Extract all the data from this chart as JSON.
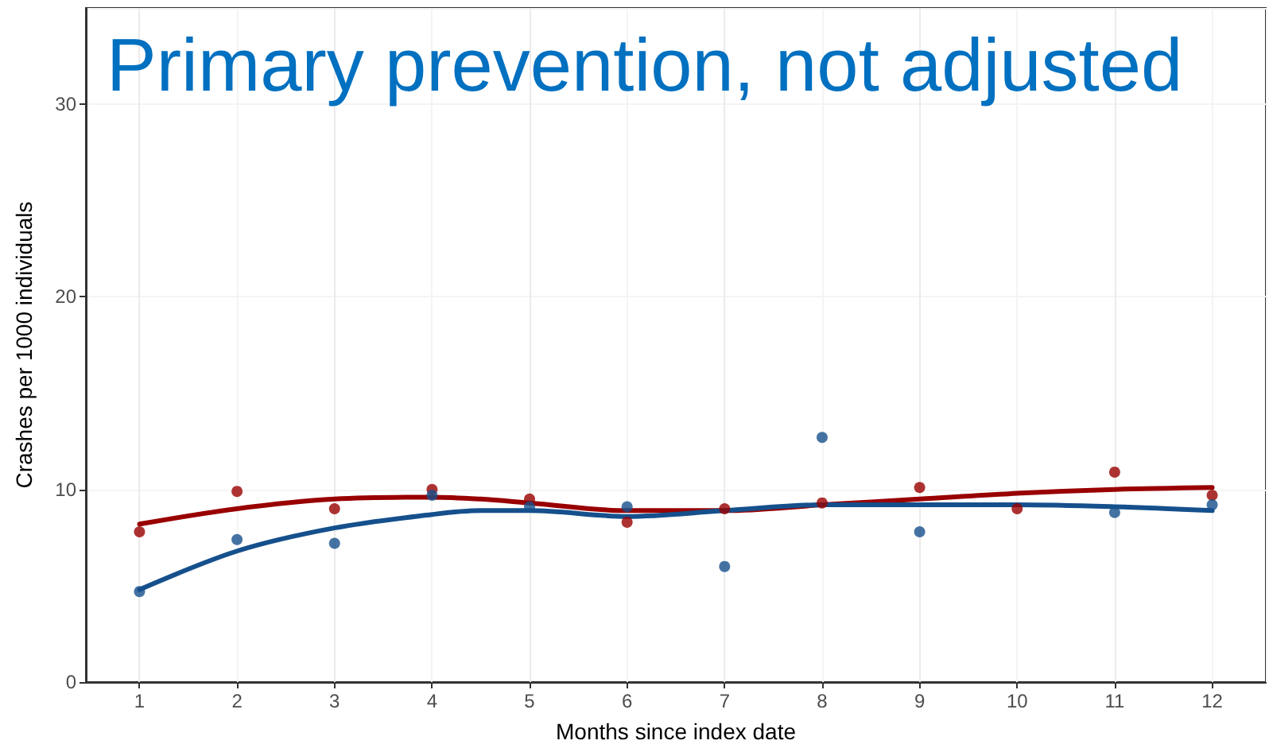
{
  "chart_data": {
    "type": "scatter",
    "title": "Primary prevention, not adjusted",
    "xlabel": "Months since index date",
    "ylabel": "Crashes per 1000 individuals",
    "x": [
      1,
      2,
      3,
      4,
      5,
      6,
      7,
      8,
      9,
      10,
      11,
      12
    ],
    "series": [
      {
        "color": "#990000",
        "marker": "circle",
        "values": [
          7.8,
          9.9,
          9.0,
          10.0,
          9.5,
          8.3,
          9.0,
          9.3,
          10.1,
          9.0,
          10.9,
          9.7
        ]
      },
      {
        "color": "#15508c",
        "marker": "circle",
        "values": [
          4.7,
          7.4,
          7.2,
          9.7,
          9.1,
          9.1,
          6.0,
          12.7,
          7.8,
          null,
          8.8,
          9.2
        ]
      },
      {
        "type": "line",
        "marker": "none",
        "color": "#990000",
        "x": [
          1,
          2,
          3,
          4,
          4.5,
          5,
          6,
          7,
          8,
          9,
          10,
          11,
          12
        ],
        "values": [
          8.2,
          9.0,
          9.5,
          9.6,
          9.5,
          9.3,
          8.9,
          8.9,
          9.2,
          9.5,
          9.8,
          10.0,
          10.1
        ]
      },
      {
        "type": "line",
        "marker": "none",
        "color": "#15508c",
        "x": [
          1,
          2,
          3,
          4,
          4.5,
          5,
          6,
          7,
          8,
          9,
          10,
          11,
          12
        ],
        "values": [
          4.8,
          6.8,
          8.0,
          8.7,
          8.9,
          8.9,
          8.6,
          8.9,
          9.2,
          9.2,
          9.2,
          9.1,
          8.9
        ]
      }
    ],
    "xlim": [
      0.45,
      12.55
    ],
    "xticks": [
      1,
      2,
      3,
      4,
      5,
      6,
      7,
      8,
      9,
      10,
      11,
      12
    ],
    "ylim": [
      0,
      35
    ],
    "yticks": [
      0,
      10,
      20,
      30
    ],
    "grid": true,
    "line_style": "solid"
  }
}
